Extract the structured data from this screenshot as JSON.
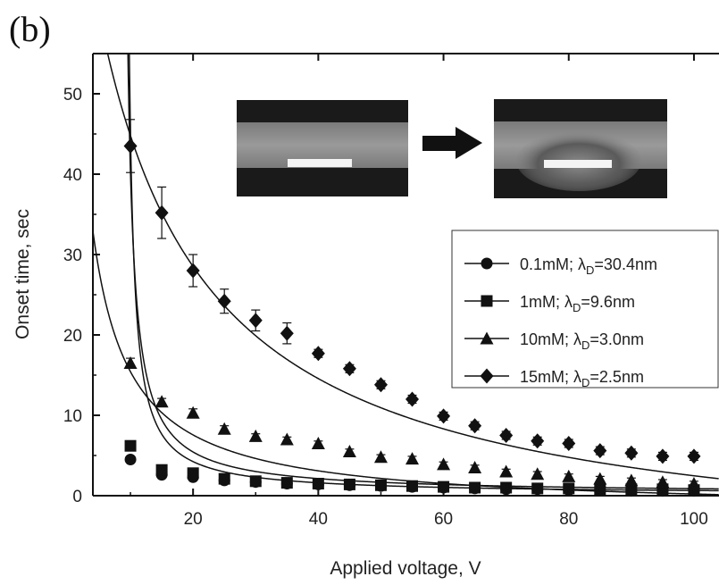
{
  "panel_label": "(b)",
  "chart_data": {
    "type": "scatter",
    "xlabel": "Applied voltage, V",
    "ylabel": "Onset time, sec",
    "xlim": [
      4,
      104
    ],
    "ylim": [
      0,
      55
    ],
    "xticks": [
      20,
      40,
      60,
      80,
      100
    ],
    "yticks": [
      0,
      10,
      20,
      30,
      40,
      50
    ],
    "grid": false,
    "legend_position": "right-middle",
    "x": [
      10,
      15,
      20,
      25,
      30,
      35,
      40,
      45,
      50,
      55,
      60,
      65,
      70,
      75,
      80,
      85,
      90,
      95,
      100
    ],
    "series": [
      {
        "name": "0.1mM; λD=30.4nm",
        "label_main": "0.1mM; λ",
        "label_sub": "D",
        "label_tail": "=30.4nm",
        "marker": "circle",
        "values": [
          4.5,
          2.6,
          2.3,
          1.9,
          1.7,
          1.5,
          1.4,
          1.3,
          1.2,
          1.1,
          1.0,
          0.9,
          0.8,
          0.8,
          0.7,
          0.7,
          0.6,
          0.6,
          0.6
        ],
        "errors": [
          0.3,
          0.3,
          0.3,
          0.2,
          0.2,
          0.2,
          0.2,
          0.1,
          0.1,
          0.1,
          0.1,
          0.1,
          0.1,
          0.1,
          0.1,
          0.1,
          0.1,
          0.1,
          0.1
        ]
      },
      {
        "name": "1mM; λD=9.6nm",
        "label_main": "1mM; λ",
        "label_sub": "D",
        "label_tail": "=9.6nm",
        "marker": "square",
        "values": [
          6.2,
          3.2,
          2.8,
          2.1,
          1.8,
          1.6,
          1.5,
          1.4,
          1.3,
          1.2,
          1.1,
          1.0,
          1.0,
          0.9,
          0.9,
          0.8,
          0.8,
          0.8,
          0.7
        ],
        "errors": [
          0.4,
          0.4,
          0.4,
          0.3,
          0.3,
          0.2,
          0.2,
          0.2,
          0.2,
          0.1,
          0.1,
          0.1,
          0.1,
          0.1,
          0.1,
          0.1,
          0.1,
          0.1,
          0.1
        ]
      },
      {
        "name": "10mM; λD=3.0nm",
        "label_main": "10mM; λ",
        "label_sub": "D",
        "label_tail": "=3.0nm",
        "marker": "triangle",
        "values": [
          16.5,
          11.7,
          10.3,
          8.3,
          7.4,
          7.0,
          6.5,
          5.5,
          4.8,
          4.6,
          3.9,
          3.5,
          3.0,
          2.7,
          2.4,
          2.1,
          1.9,
          1.7,
          1.5
        ],
        "errors": [
          0.6,
          0.4,
          0.5,
          0.4,
          0.3,
          0.3,
          0.3,
          0.3,
          0.3,
          0.3,
          0.3,
          0.3,
          0.3,
          0.3,
          0.3,
          0.3,
          0.3,
          0.3,
          0.3
        ]
      },
      {
        "name": "15mM; λD=2.5nm",
        "label_main": "15mM; λ",
        "label_sub": "D",
        "label_tail": "=2.5nm",
        "marker": "diamond",
        "values": [
          43.5,
          35.2,
          28.0,
          24.2,
          21.8,
          20.2,
          17.7,
          15.8,
          13.8,
          12.0,
          9.9,
          8.7,
          7.5,
          6.8,
          6.5,
          5.6,
          5.3,
          4.9,
          4.9
        ],
        "errors": [
          3.3,
          3.2,
          2.0,
          1.5,
          1.3,
          1.3,
          0.5,
          0.5,
          0.5,
          0.5,
          0.5,
          0.5,
          0.5,
          0.5,
          0.5,
          0.5,
          0.5,
          0.5,
          0.5
        ]
      }
    ],
    "fit_curves": [
      {
        "series": "0.1mM; λD=30.4nm",
        "a": 45,
        "b": 0.15,
        "x0": 9.0
      },
      {
        "series": "1mM; λD=9.6nm",
        "a": 60,
        "b": 0.22,
        "x0": 8.5
      },
      {
        "series": "10mM; λD=3.0nm",
        "a": 205,
        "b": -1.8,
        "x0": -1.9
      },
      {
        "series": "15mM; λD=2.5nm",
        "a": 1190,
        "b": -8.1,
        "x0": -12.5
      }
    ]
  }
}
